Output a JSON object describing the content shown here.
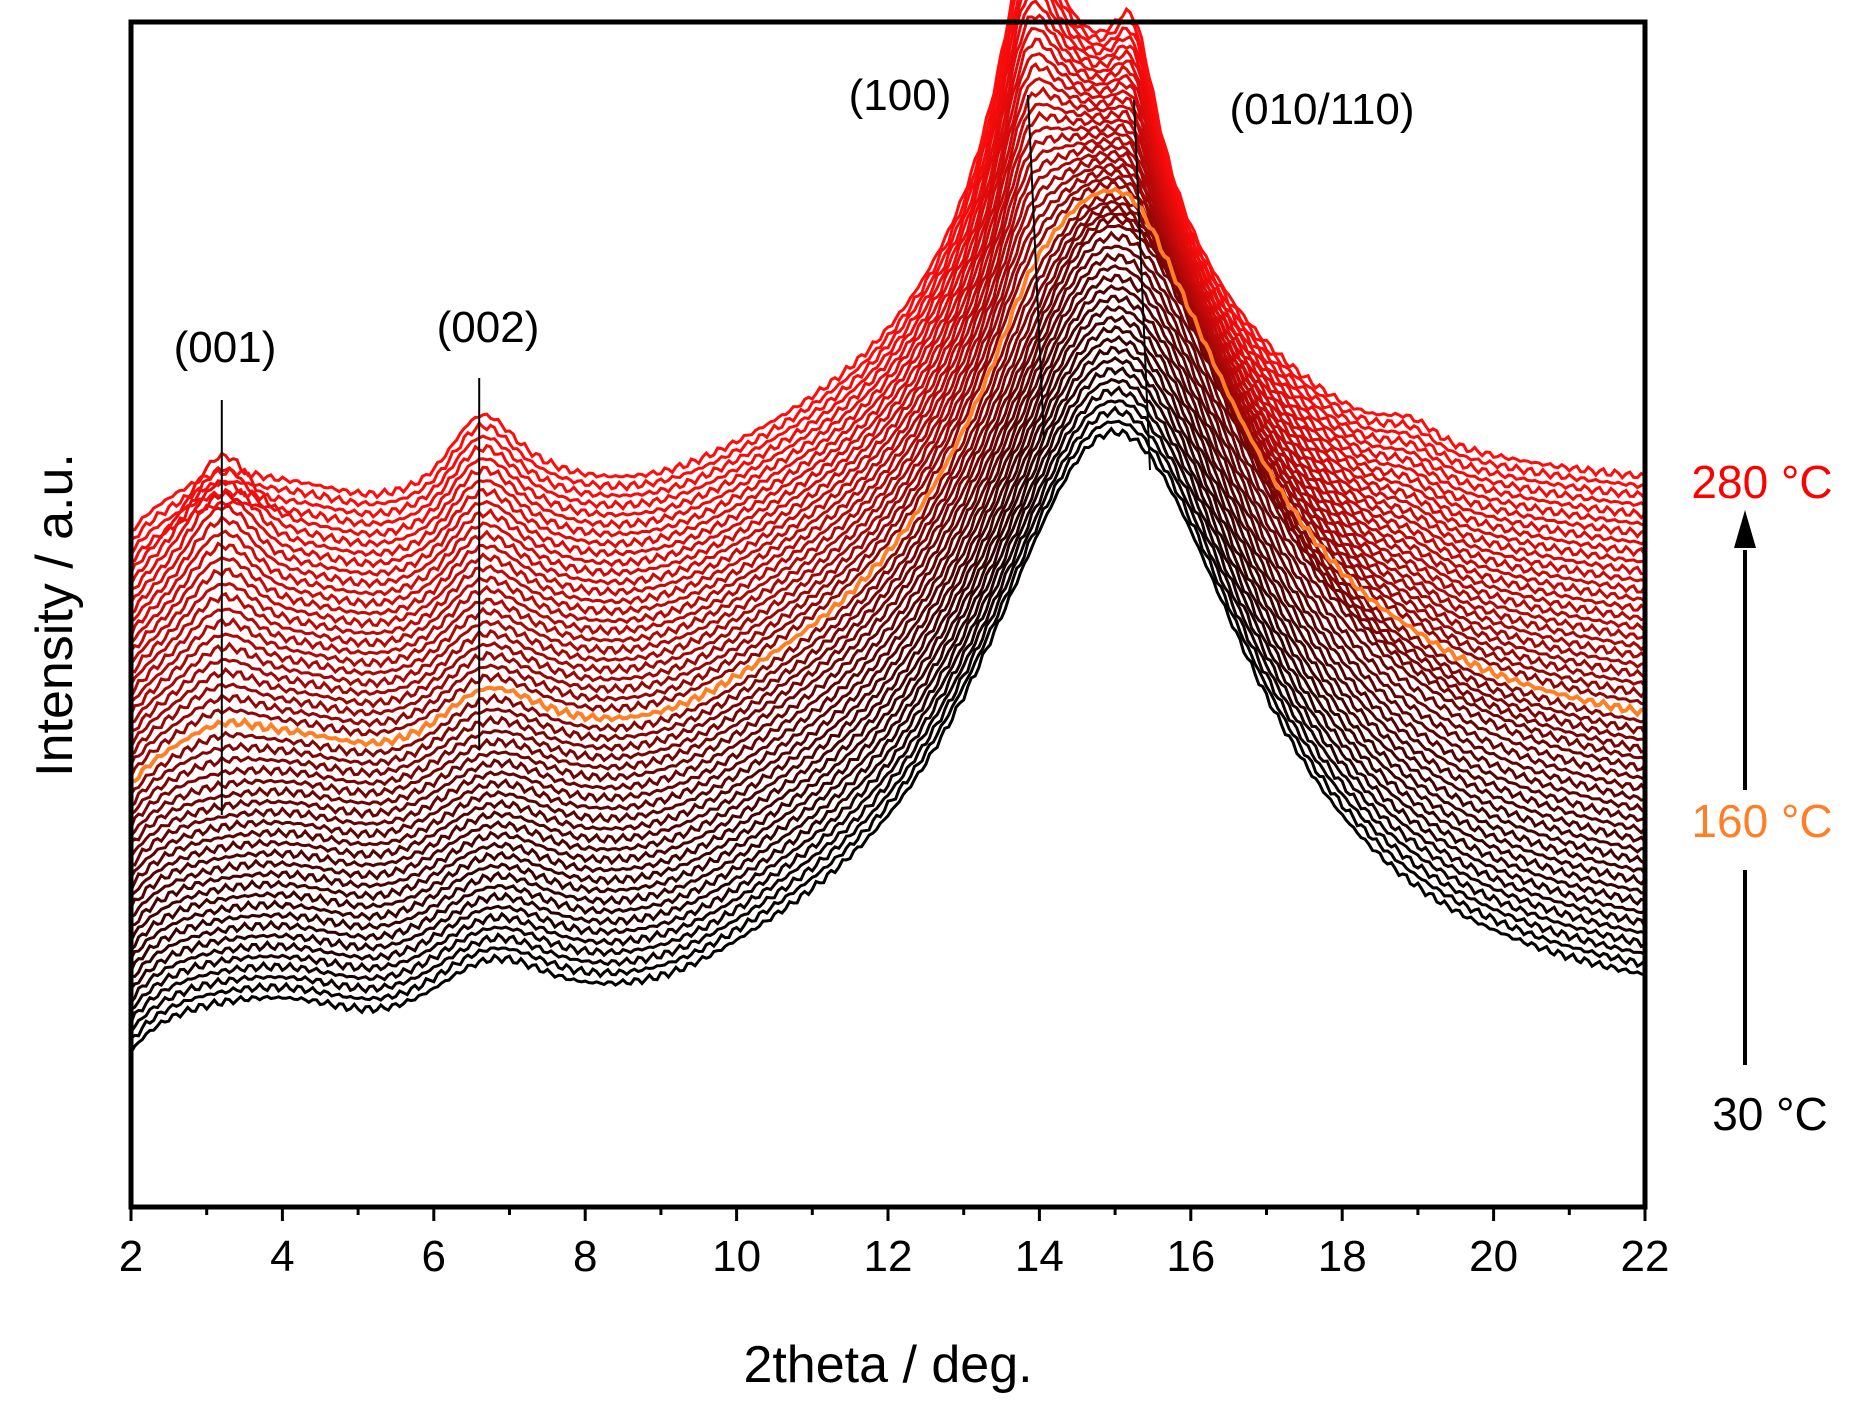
{
  "chart_data": {
    "type": "line",
    "title": "",
    "xlabel": "2theta / deg.",
    "ylabel": "Intensity / a.u.",
    "xlim": [
      2,
      22
    ],
    "x_ticks": [
      "2",
      "4",
      "6",
      "8",
      "10",
      "12",
      "14",
      "16",
      "18",
      "20",
      "22"
    ],
    "n_series": 52,
    "temperature_start_C": 30,
    "temperature_end_C": 280,
    "highlight_series_index": 26,
    "colors": {
      "low": "#000000",
      "high": "#ff0000",
      "highlight": "#ff7f27"
    },
    "temperature_labels": [
      {
        "text": "280 °C",
        "color": "#ff0000"
      },
      {
        "text": "160 °C",
        "color": "#ff7f27"
      },
      {
        "text": "30 °C",
        "color": "#000000"
      }
    ],
    "peaks": [
      {
        "label": "(001)",
        "x": 3.2
      },
      {
        "label": "(002)",
        "x": 6.6
      },
      {
        "label": "(100)",
        "x": 13.85
      },
      {
        "label": "(010/110)",
        "x": 15.25
      }
    ],
    "series_model": "broad amorphous halo (~15°, FWHM ~4.5°) from 30 °C to 160 °C; above 160 °C the halo splits into crystalline peaks (100) ~13.8° and (010/110) ~15.2°, with (001) ~3.2°, (002) ~6.6° and a weak reflection ~18.9° appearing; curves offset vertically with increasing temperature"
  }
}
